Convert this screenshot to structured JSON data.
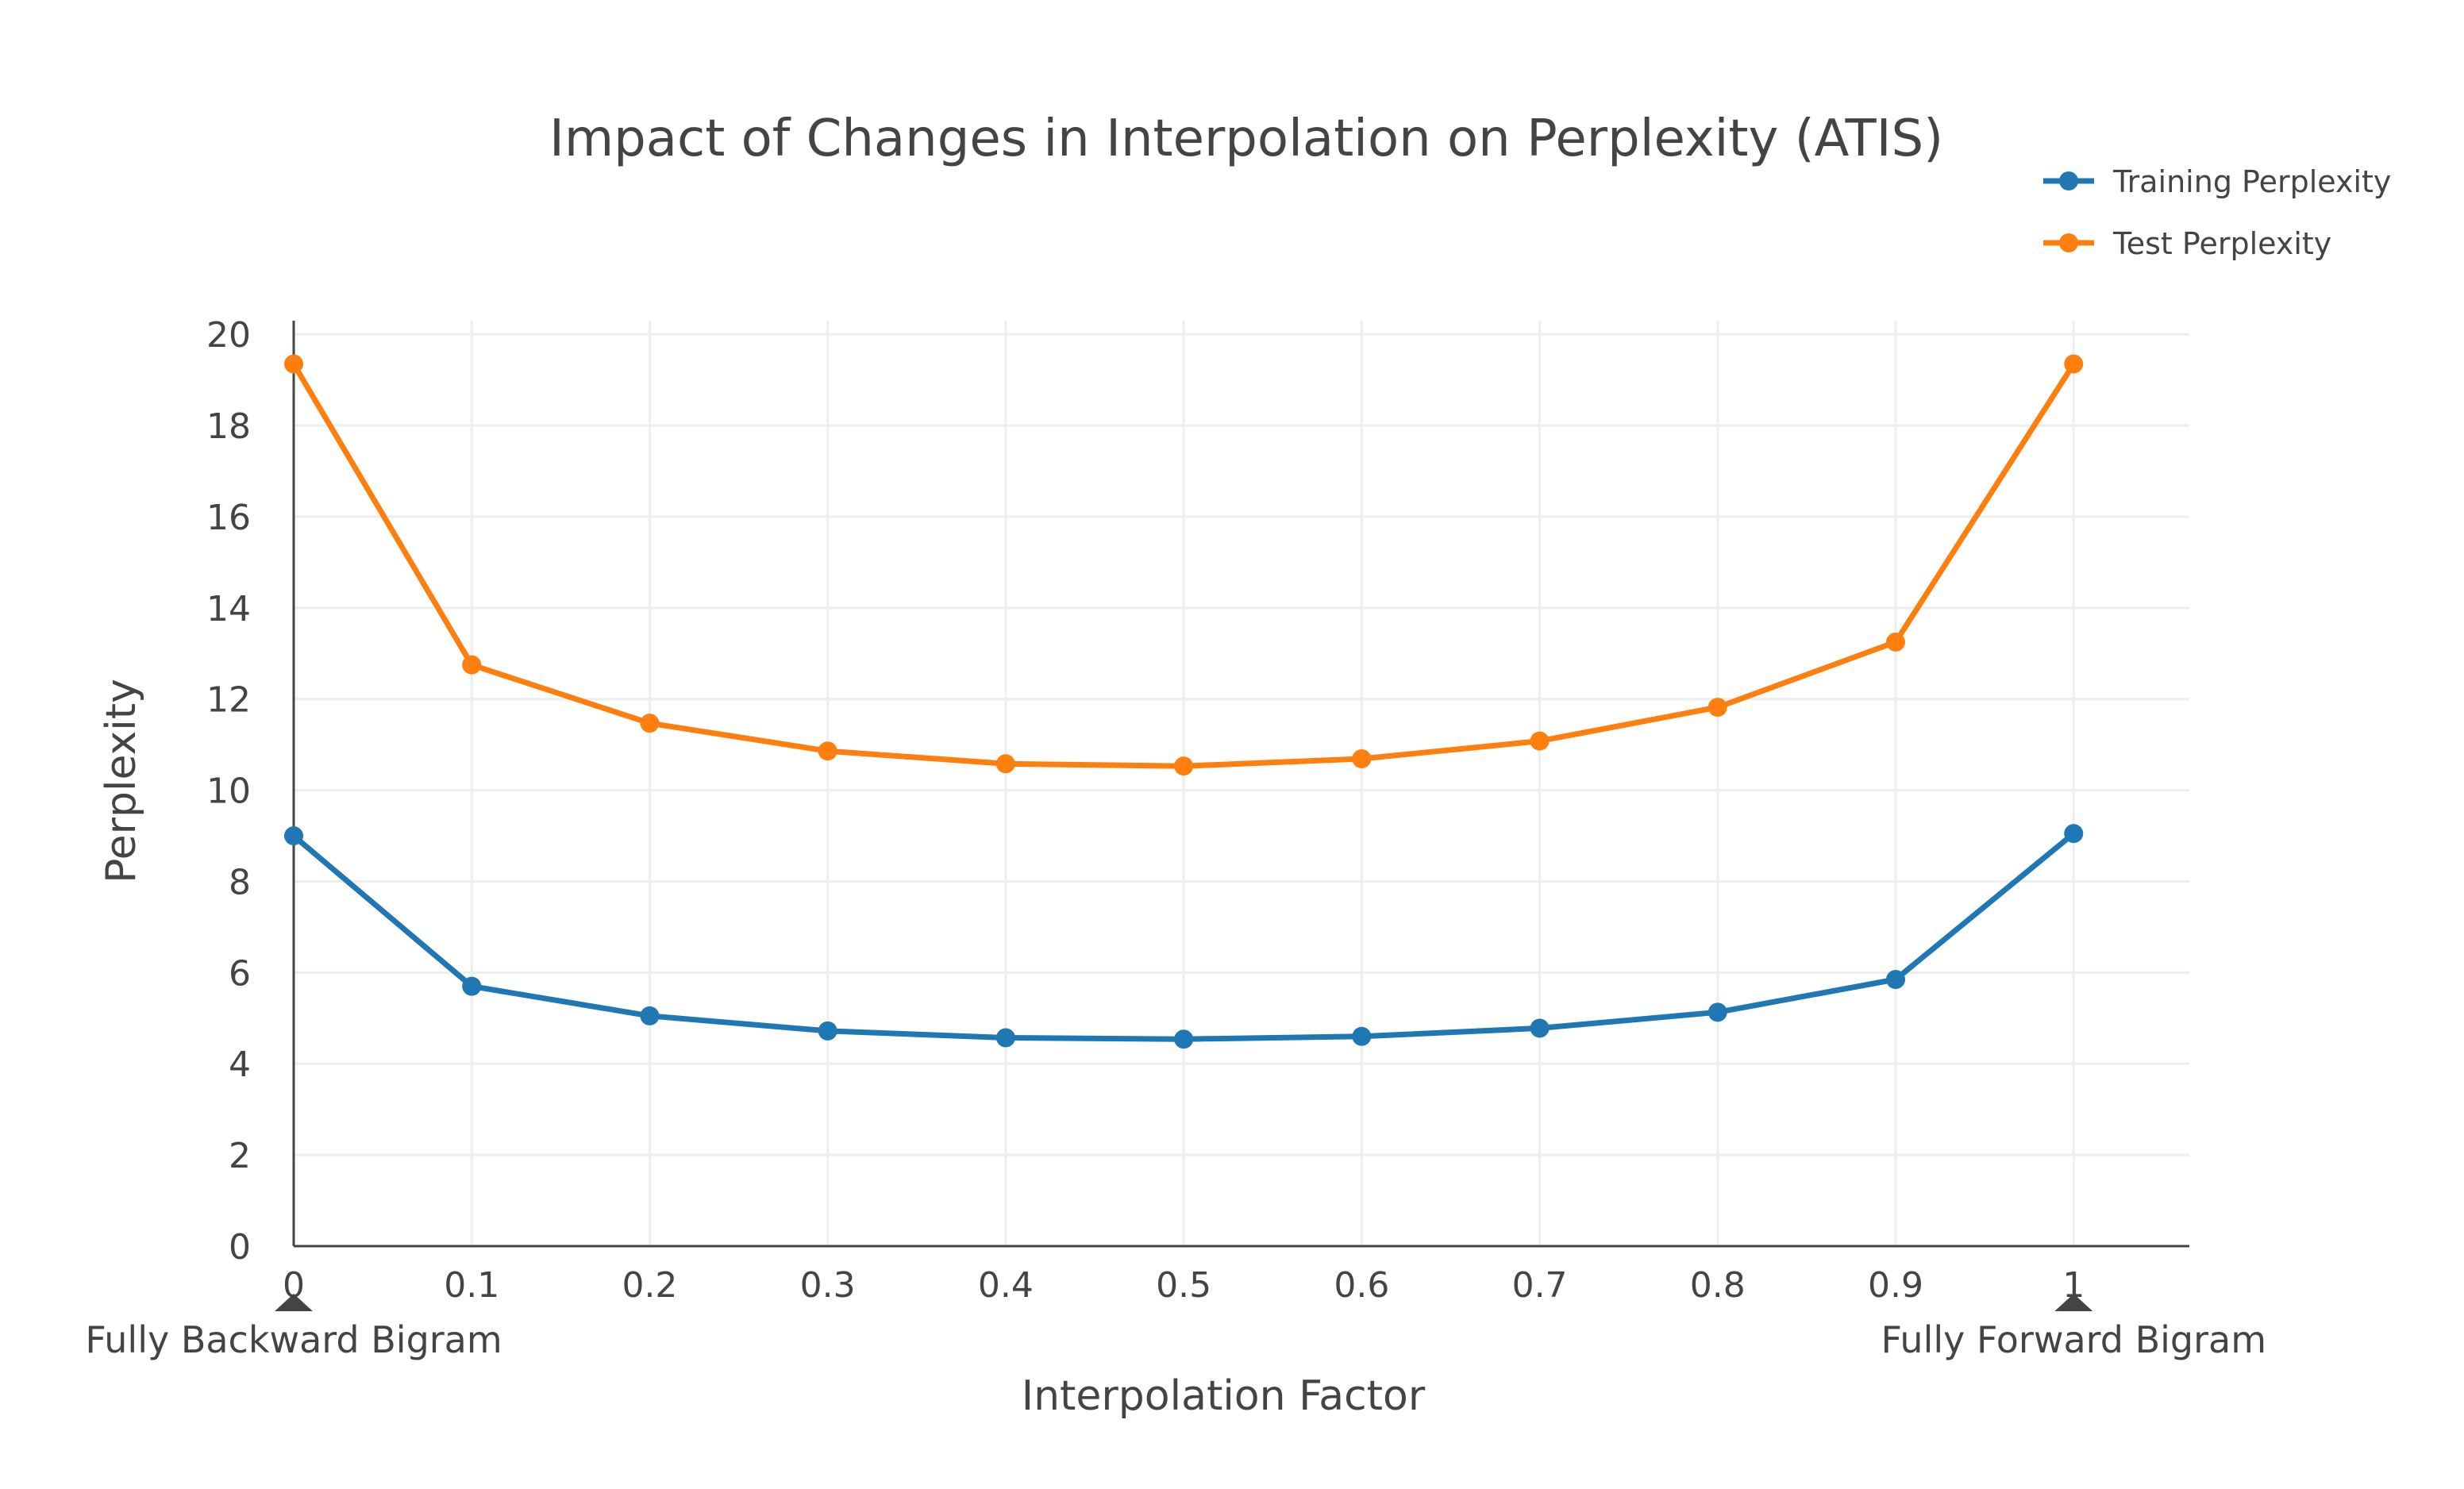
{
  "chart_data": {
    "type": "line",
    "title": "Impact of Changes in Interpolation on Perplexity (ATIS)",
    "xlabel": "Interpolation Factor",
    "ylabel": "Perplexity",
    "x": [
      0,
      0.1,
      0.2,
      0.3,
      0.4,
      0.5,
      0.6,
      0.7,
      0.8,
      0.9,
      1
    ],
    "x_tick_labels": [
      "0",
      "0.1",
      "0.2",
      "0.3",
      "0.4",
      "0.5",
      "0.6",
      "0.7",
      "0.8",
      "0.9",
      "1"
    ],
    "y_tick_labels": [
      "0",
      "2",
      "4",
      "6",
      "8",
      "10",
      "12",
      "14",
      "16",
      "18",
      "20"
    ],
    "xlim": [
      0,
      1.065
    ],
    "ylim": [
      0,
      20.3
    ],
    "grid": true,
    "legend_position": "top-right",
    "series": [
      {
        "name": "Training Perplexity",
        "color": "#1f77b4",
        "values": [
          9.0,
          5.7,
          5.05,
          4.72,
          4.57,
          4.54,
          4.6,
          4.78,
          5.13,
          5.85,
          9.05
        ]
      },
      {
        "name": "Test Perplexity",
        "color": "#ff7f0e",
        "values": [
          19.35,
          12.75,
          11.47,
          10.86,
          10.58,
          10.53,
          10.69,
          11.08,
          11.82,
          13.25,
          19.35
        ]
      }
    ],
    "annotations": [
      {
        "text": "Fully Backward Bigram",
        "x": 0
      },
      {
        "text": "Fully Forward Bigram",
        "x": 1
      }
    ]
  }
}
